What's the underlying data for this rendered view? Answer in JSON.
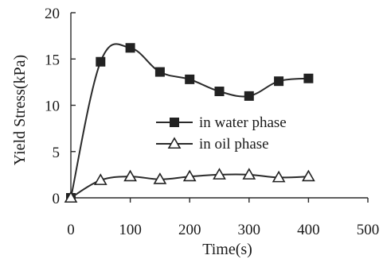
{
  "chart_data": {
    "type": "line",
    "title": "",
    "xlabel": "Time(s)",
    "ylabel": "Yield Stress(kPa)",
    "xlim": [
      0,
      500
    ],
    "ylim": [
      0,
      20
    ],
    "xticks": [
      0,
      100,
      200,
      300,
      400,
      500
    ],
    "yticks": [
      0,
      5,
      10,
      15,
      20
    ],
    "grid": false,
    "legend_position": "center-right",
    "series": [
      {
        "name": "in water phase",
        "marker": "filled-square",
        "color": "#222222",
        "x": [
          0,
          50,
          100,
          150,
          200,
          250,
          300,
          350,
          400
        ],
        "values": [
          0,
          14.7,
          16.2,
          13.6,
          12.8,
          11.5,
          11.0,
          12.6,
          12.9
        ]
      },
      {
        "name": "in oil phase",
        "marker": "open-triangle",
        "color": "#222222",
        "x": [
          0,
          50,
          100,
          150,
          200,
          250,
          300,
          350,
          400
        ],
        "values": [
          0,
          1.9,
          2.3,
          2.0,
          2.3,
          2.5,
          2.5,
          2.2,
          2.3
        ]
      }
    ]
  }
}
